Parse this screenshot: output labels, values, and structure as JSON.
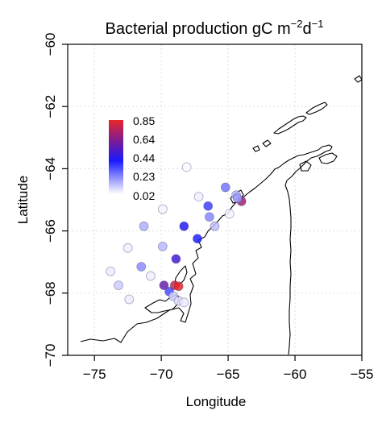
{
  "chart_data": {
    "type": "scatter",
    "title": "Bacterial production gC m",
    "title_sup1": "−2",
    "title_mid": "d",
    "title_sup2": "−1",
    "xlabel": "Longitude",
    "ylabel": "Latitude",
    "xlim": [
      -77,
      -55
    ],
    "ylim": [
      -70,
      -60
    ],
    "xticks": [
      -75,
      -70,
      -65,
      -60,
      -55
    ],
    "xtick_labels": [
      "−75",
      "−70",
      "−65",
      "−60",
      "−55"
    ],
    "yticks": [
      -70,
      -68,
      -66,
      -64,
      -62,
      -60
    ],
    "ytick_labels": [
      "−70",
      "−68",
      "−66",
      "−64",
      "−62",
      "−60"
    ],
    "grid": true,
    "color_scale": {
      "labels": [
        "0.85",
        "0.64",
        "0.44",
        "0.23",
        "0.02"
      ],
      "min": 0.02,
      "max": 0.85,
      "colors": {
        "low": "#ffffff",
        "mid": "#1a1aff",
        "high": "#e8262a"
      }
    },
    "points": [
      {
        "lon": -73.8,
        "lat": -67.3,
        "value": 0.06
      },
      {
        "lon": -73.2,
        "lat": -67.75,
        "value": 0.12
      },
      {
        "lon": -72.5,
        "lat": -66.55,
        "value": 0.05
      },
      {
        "lon": -72.4,
        "lat": -68.2,
        "value": 0.06
      },
      {
        "lon": -71.3,
        "lat": -65.85,
        "value": 0.18
      },
      {
        "lon": -71.5,
        "lat": -67.15,
        "value": 0.25
      },
      {
        "lon": -70.8,
        "lat": -67.45,
        "value": 0.05
      },
      {
        "lon": -69.9,
        "lat": -65.3,
        "value": 0.04
      },
      {
        "lon": -69.9,
        "lat": -66.5,
        "value": 0.16
      },
      {
        "lon": -69.8,
        "lat": -67.75,
        "value": 0.62
      },
      {
        "lon": -69.4,
        "lat": -67.95,
        "value": 0.38
      },
      {
        "lon": -69.1,
        "lat": -68.1,
        "value": 0.12
      },
      {
        "lon": -68.7,
        "lat": -68.25,
        "value": 0.08
      },
      {
        "lon": -68.3,
        "lat": -68.3,
        "value": 0.06
      },
      {
        "lon": -69.0,
        "lat": -67.75,
        "value": 0.8
      },
      {
        "lon": -68.7,
        "lat": -67.78,
        "value": 0.85
      },
      {
        "lon": -68.9,
        "lat": -66.9,
        "value": 0.55
      },
      {
        "lon": -68.3,
        "lat": -65.85,
        "value": 0.5
      },
      {
        "lon": -68.1,
        "lat": -63.95,
        "value": 0.03
      },
      {
        "lon": -67.3,
        "lat": -66.25,
        "value": 0.46
      },
      {
        "lon": -67.2,
        "lat": -64.9,
        "value": 0.05
      },
      {
        "lon": -66.5,
        "lat": -65.2,
        "value": 0.4
      },
      {
        "lon": -66.4,
        "lat": -65.55,
        "value": 0.26
      },
      {
        "lon": -66.0,
        "lat": -65.85,
        "value": 0.15
      },
      {
        "lon": -65.2,
        "lat": -64.6,
        "value": 0.3
      },
      {
        "lon": -64.9,
        "lat": -65.45,
        "value": 0.04
      },
      {
        "lon": -64.4,
        "lat": -64.85,
        "value": 0.16
      },
      {
        "lon": -64.0,
        "lat": -65.05,
        "value": 0.72
      },
      {
        "lon": -64.3,
        "lat": -64.95,
        "value": 0.22
      }
    ]
  }
}
